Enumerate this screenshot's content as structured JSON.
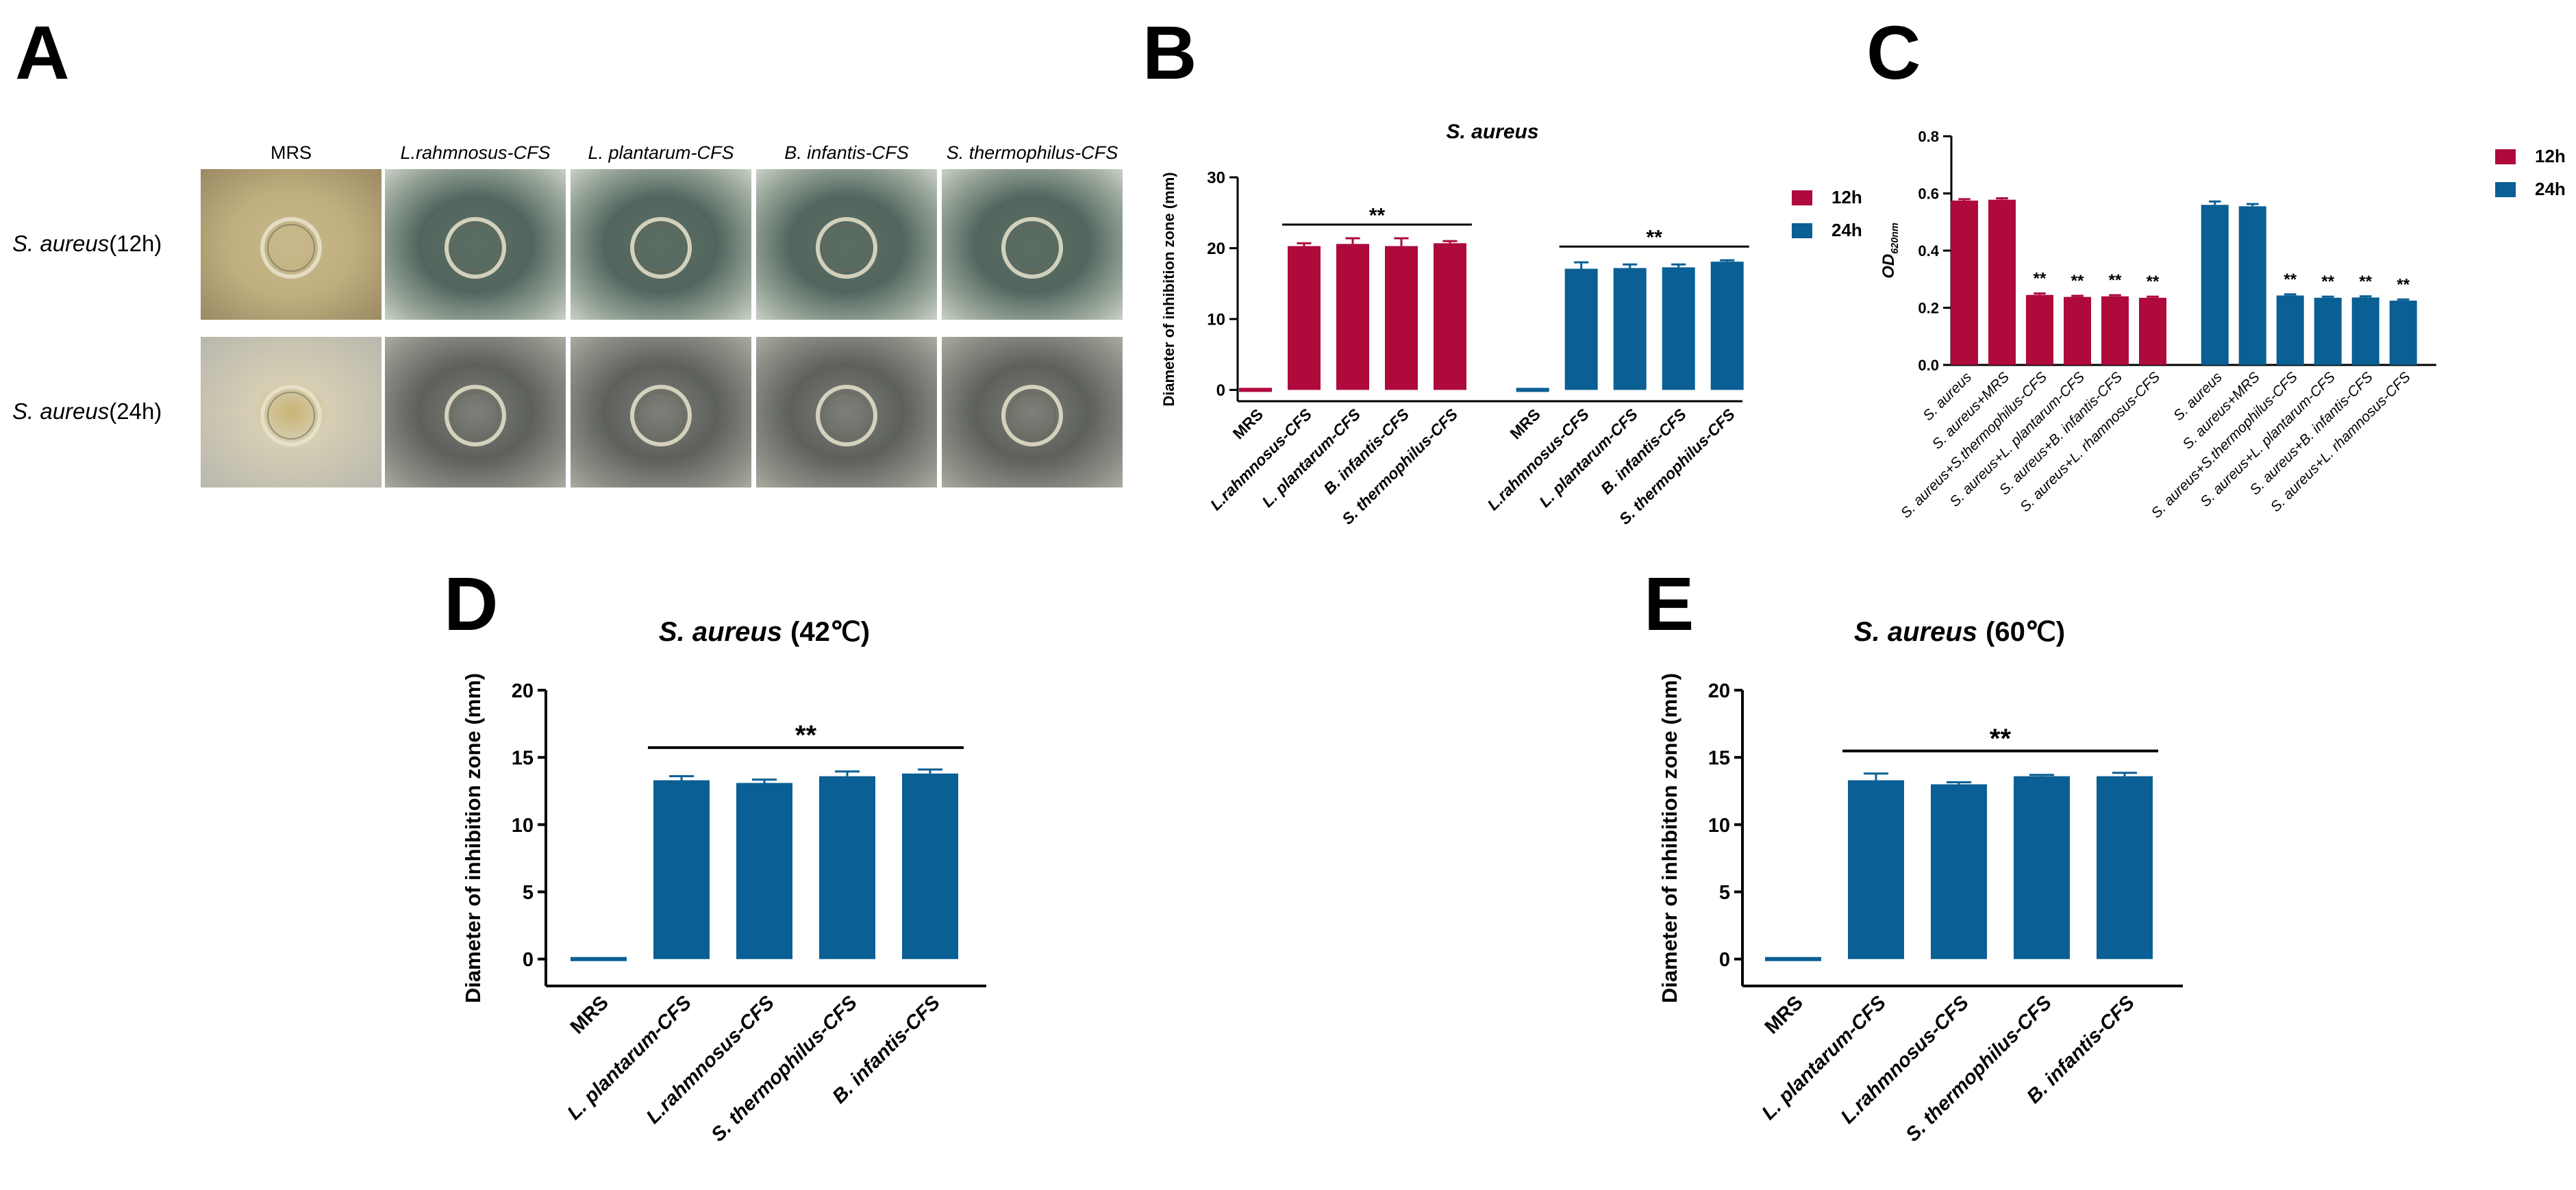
{
  "photo_panel": {
    "label": "A",
    "columns": [
      "MRS",
      "L.rahmnosus-CFS",
      "L. plantarum-CFS",
      "B. infantis-CFS",
      "S. thermophilus-CFS"
    ],
    "rows": [
      {
        "species": "S. aureus",
        "condition": "(12h)"
      },
      {
        "species": "S. aureus",
        "condition": "(24h)"
      }
    ]
  },
  "chart_data": [
    {
      "panel": "B",
      "type": "bar",
      "title": "S. aureus",
      "ylabel": "Diameter of inhibition zone (mm)",
      "categories": [
        "MRS",
        "L.rahmnosus-CFS",
        "L. plantarum-CFS",
        "B. infantis-CFS",
        "S. thermophilus-CFS"
      ],
      "series": [
        {
          "name": "12h",
          "color": "#ae0a3c",
          "values": [
            0,
            20.3,
            20.6,
            20.3,
            20.7
          ],
          "errors": [
            0,
            0.4,
            0.8,
            1.1,
            0.3
          ],
          "significance": "**"
        },
        {
          "name": "24h",
          "color": "#0a5f94",
          "values": [
            0,
            17.1,
            17.2,
            17.3,
            18.1
          ],
          "errors": [
            0,
            0.9,
            0.5,
            0.4,
            0.2
          ],
          "significance": "**"
        }
      ],
      "ylim": [
        -1.6,
        30
      ],
      "yticks": [
        0,
        10,
        20,
        30
      ],
      "legend": "upper right"
    },
    {
      "panel": "C",
      "type": "bar",
      "ylabel": "OD",
      "ylabel_sub": "620nm",
      "categories": [
        "S. aureus",
        "S. aureus+MRS",
        "S. aureus+S.thermophilus-CFS",
        "S. aureus+L. plantarum-CFS",
        "S. aureus+B. infantis-CFS",
        "S. aureus+L. rhamnosus-CFS"
      ],
      "series": [
        {
          "name": "12h",
          "color": "#ae0a3c",
          "values": [
            0.575,
            0.578,
            0.245,
            0.238,
            0.24,
            0.235
          ],
          "errors": [
            0.005,
            0.005,
            0.005,
            0.004,
            0.004,
            0.004
          ],
          "significance": [
            null,
            null,
            "**",
            "**",
            "**",
            "**"
          ]
        },
        {
          "name": "24h",
          "color": "#0a5f94",
          "values": [
            0.56,
            0.555,
            0.243,
            0.235,
            0.236,
            0.225
          ],
          "errors": [
            0.012,
            0.008,
            0.004,
            0.004,
            0.004,
            0.004
          ],
          "significance": [
            null,
            null,
            "**",
            "**",
            "**",
            "**"
          ]
        }
      ],
      "ylim": [
        0,
        0.8
      ],
      "yticks": [
        {
          "value": 0,
          "label": "0.0"
        },
        0.2,
        0.4,
        0.6,
        0.8
      ],
      "legend": "upper right"
    },
    {
      "panel": "D",
      "type": "bar",
      "title_species": "S. aureus",
      "title_condition": "(42℃)",
      "ylabel": "Diameter of inhibition zone (mm)",
      "categories": [
        "MRS",
        "L. plantarum-CFS",
        "L.rahmnosus-CFS",
        "S. thermophilus-CFS",
        "B. infantis-CFS"
      ],
      "series": [
        {
          "color": "#0a5f94",
          "values": [
            0,
            13.3,
            13.1,
            13.6,
            13.8
          ],
          "errors": [
            0,
            0.3,
            0.25,
            0.35,
            0.3
          ],
          "significance": "**"
        }
      ],
      "ylim": [
        -2,
        20
      ],
      "yticks": [
        0,
        5,
        10,
        15,
        20
      ]
    },
    {
      "panel": "E",
      "type": "bar",
      "title_species": "S. aureus",
      "title_condition": "(60℃)",
      "ylabel": "Diameter of inhibition zone (mm)",
      "categories": [
        "MRS",
        "L. plantarum-CFS",
        "L.rahmnosus-CFS",
        "S. thermophilus-CFS",
        "B. infantis-CFS"
      ],
      "series": [
        {
          "color": "#0a5f94",
          "values": [
            0,
            13.3,
            13.0,
            13.6,
            13.6
          ],
          "errors": [
            0,
            0.5,
            0.15,
            0.1,
            0.25
          ],
          "significance": "**"
        }
      ],
      "ylim": [
        -2,
        20
      ],
      "yticks": [
        0,
        5,
        10,
        15,
        20
      ]
    }
  ]
}
